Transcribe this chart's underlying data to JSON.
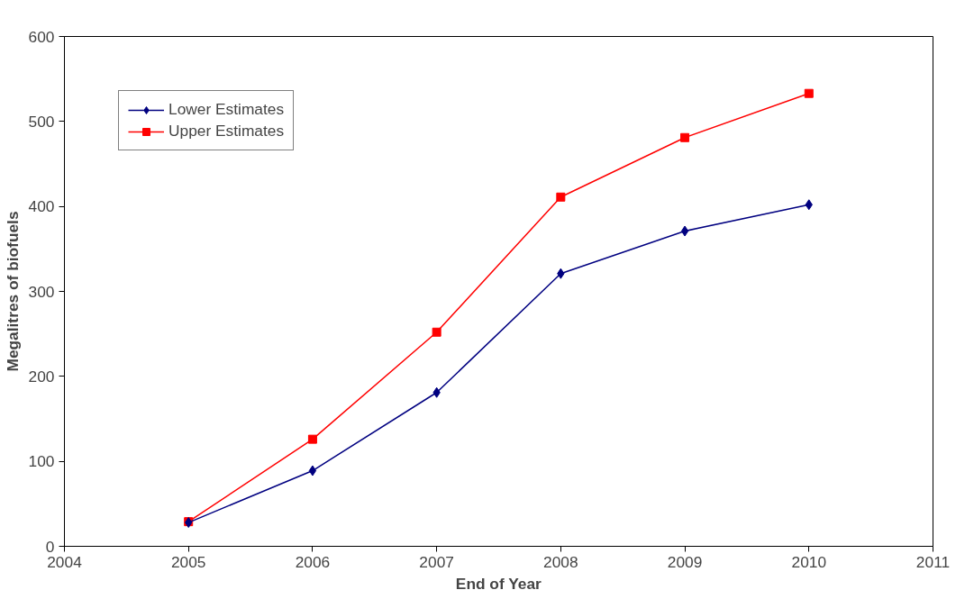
{
  "chart_data": {
    "type": "line",
    "xlabel": "End of Year",
    "ylabel": "Megalitres of biofuels",
    "x": [
      2005,
      2006,
      2007,
      2008,
      2009,
      2010
    ],
    "series": [
      {
        "name": "Lower Estimates",
        "color": "#000080",
        "marker": "diamond",
        "values": [
          28,
          89,
          181,
          321,
          371,
          402
        ]
      },
      {
        "name": "Upper Estimates",
        "color": "#ff0000",
        "marker": "square",
        "values": [
          29,
          126,
          252,
          411,
          481,
          533
        ]
      }
    ],
    "xlim": [
      2004,
      2011
    ],
    "xticks": [
      2004,
      2005,
      2006,
      2007,
      2008,
      2009,
      2010,
      2011
    ],
    "ylim": [
      0,
      600
    ],
    "yticks": [
      0,
      100,
      200,
      300,
      400,
      500,
      600
    ],
    "grid": false,
    "legend": "top left",
    "line_style": "solid"
  }
}
